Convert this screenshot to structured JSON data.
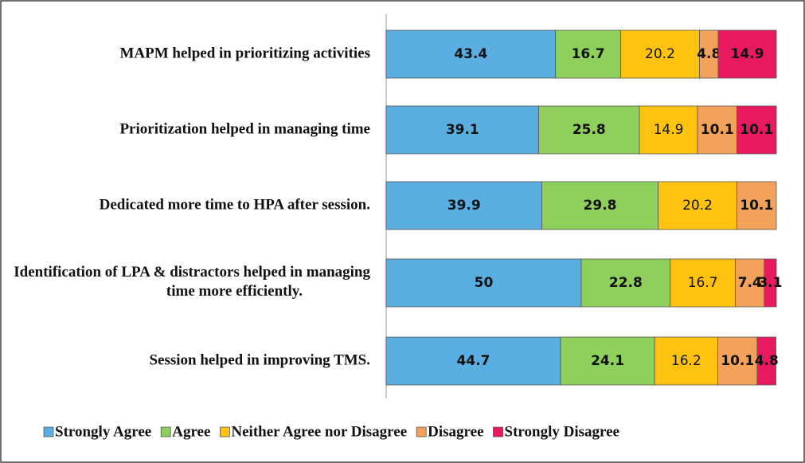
{
  "chart_data": {
    "type": "stacked-bar-horizontal",
    "categories": [
      "MAPM helped in prioritizing activities",
      "Prioritization helped in managing time",
      "Dedicated more time to HPA after session.",
      "Identification of LPA & distractors helped in managing time more efficiently.",
      "Session helped in improving TMS."
    ],
    "series": [
      {
        "name": "Strongly Agree",
        "color": "#5aaee2",
        "values": [
          43.4,
          39.1,
          39.9,
          50,
          44.7
        ]
      },
      {
        "name": "Agree",
        "color": "#8fd05c",
        "values": [
          16.7,
          25.8,
          29.8,
          22.8,
          24.1
        ]
      },
      {
        "name": "Neither Agree nor Disagree",
        "color": "#ffc20e",
        "values": [
          20.2,
          14.9,
          20.2,
          16.7,
          16.2
        ]
      },
      {
        "name": "Disagree",
        "color": "#f2a25a",
        "values": [
          4.8,
          10.1,
          10.1,
          7.4,
          10.1
        ]
      },
      {
        "name": "Strongly Disagree",
        "color": "#e8195f",
        "values": [
          14.9,
          10.1,
          null,
          3.1,
          4.8
        ]
      }
    ],
    "xlim": [
      0,
      100
    ],
    "legend": "bottom"
  }
}
